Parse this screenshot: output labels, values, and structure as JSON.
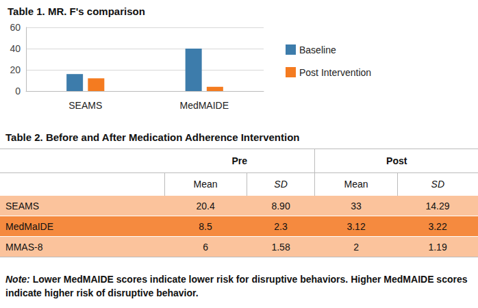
{
  "chart_data": {
    "type": "bar",
    "title": "Table 1. MR. F's comparison",
    "categories": [
      "SEAMS",
      "MedMAIDE"
    ],
    "series": [
      {
        "name": "Baseline",
        "color": "#3d7cab",
        "values": [
          16,
          40
        ]
      },
      {
        "name": "Post Intervention",
        "color": "#f47b20",
        "values": [
          12,
          4
        ]
      }
    ],
    "ylim": [
      0,
      60
    ],
    "yticks": [
      0,
      20,
      40,
      60
    ],
    "grid": true,
    "legend": "right"
  },
  "table": {
    "title": "Table 2. Before and After Medication Adherence Intervention",
    "header": [
      "",
      "Pre",
      "Post"
    ],
    "subheader": [
      "",
      "Mean",
      "SD",
      "Mean",
      "SD"
    ],
    "rows": [
      [
        "SEAMS",
        "20.4",
        "8.90",
        "33",
        "14.29"
      ],
      [
        "MedMaIDE",
        "8.5",
        "2.3",
        "3.12",
        "3.22"
      ],
      [
        "MMAS-8",
        "6",
        "1.58",
        "2",
        "1.19"
      ]
    ]
  },
  "note": {
    "label": "Note:",
    "text": "Lower MedMAIDE scores indicate lower risk for disruptive behaviors. Higher MedMAIDE scores indicate higher risk of disruptive behavior."
  }
}
